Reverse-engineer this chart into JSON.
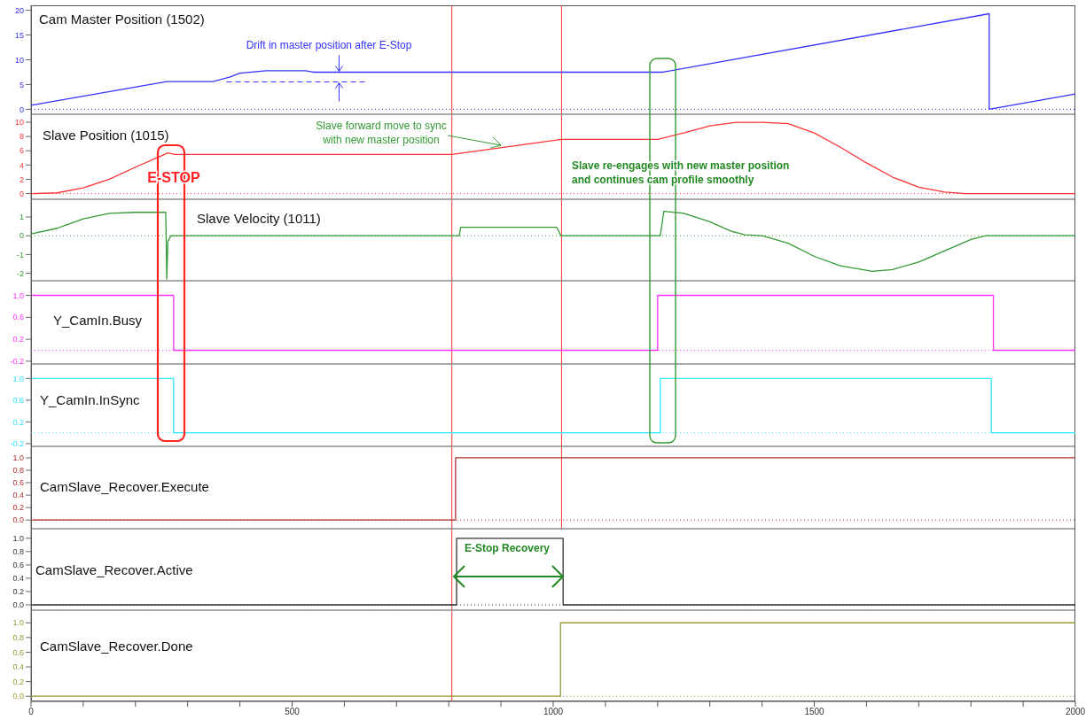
{
  "chart_data": [
    {
      "type": "line",
      "title": "Cam Master Position (1502)",
      "x": [
        0,
        260,
        348,
        380,
        400,
        450,
        526,
        540,
        1210,
        1835,
        1835,
        2000
      ],
      "series": [
        {
          "color": "#3333ff",
          "values": [
            0.8,
            5.6,
            5.6,
            6.5,
            7.3,
            7.8,
            7.8,
            7.5,
            7.5,
            19.3,
            0,
            3.1
          ]
        }
      ],
      "xlim": [
        0,
        2000
      ],
      "ylim": [
        -1,
        21
      ],
      "yticks": [
        0,
        5,
        10,
        15,
        20
      ],
      "tick_labels": "y",
      "ref_lines": [
        {
          "axis": "y",
          "value": 0,
          "color": "#3333ff",
          "line_style": "dotted"
        },
        {
          "axis": "x",
          "value": 806,
          "color": "#ff3333"
        },
        {
          "axis": "x",
          "value": 1016,
          "color": "#ff3333"
        }
      ],
      "annotations": [
        {
          "text": "Drift in master position after E-Stop",
          "x": 590,
          "y": 7.5
        }
      ]
    },
    {
      "type": "line",
      "title": "Slave Position (1015)",
      "x": [
        0,
        50,
        100,
        150,
        200,
        250,
        262,
        275,
        806,
        1016,
        1200,
        1250,
        1300,
        1350,
        1400,
        1450,
        1500,
        1550,
        1600,
        1650,
        1700,
        1750,
        1790,
        2000
      ],
      "series": [
        {
          "color": "#ff3333",
          "values": [
            0,
            0.1,
            0.8,
            2,
            3.7,
            5.3,
            5.7,
            5.5,
            5.5,
            7.6,
            7.6,
            8.5,
            9.5,
            10,
            10,
            9.8,
            8.5,
            6.5,
            4.3,
            2.3,
            0.9,
            0.2,
            0,
            0
          ]
        }
      ],
      "xlim": [
        0,
        2000
      ],
      "ylim": [
        -0.8,
        11
      ],
      "yticks": [
        0,
        2,
        4,
        6,
        8,
        10
      ],
      "tick_labels": "y",
      "ref_lines": [
        {
          "axis": "y",
          "value": 0,
          "color": "#ff3333",
          "line_style": "dotted"
        },
        {
          "axis": "x",
          "value": 806,
          "color": "#ff3333"
        },
        {
          "axis": "x",
          "value": 1016,
          "color": "#ff3333"
        }
      ],
      "annotations": [
        {
          "text": "Slave forward move to sync with new master position",
          "x": 900,
          "y": 6.4
        },
        "E-STOP",
        "Slave re-engages with new master position and continues cam profile smoothly"
      ]
    },
    {
      "type": "line",
      "title": "Slave Velocity (1011)",
      "x": [
        0,
        50,
        100,
        150,
        200,
        258,
        260,
        262,
        268,
        820,
        823,
        1007,
        1015,
        1205,
        1212,
        1250,
        1300,
        1340,
        1367,
        1400,
        1450,
        1500,
        1550,
        1611,
        1650,
        1700,
        1750,
        1800,
        1829,
        2000
      ],
      "series": [
        {
          "color": "#339933",
          "values": [
            0.1,
            0.4,
            0.9,
            1.2,
            1.25,
            1.25,
            -2.3,
            -0.3,
            0,
            0,
            0.45,
            0.45,
            0,
            0,
            1.3,
            1.2,
            0.75,
            0.25,
            0.05,
            0,
            -0.4,
            -1.1,
            -1.6,
            -1.9,
            -1.8,
            -1.4,
            -0.8,
            -0.2,
            0,
            0
          ]
        }
      ],
      "xlim": [
        0,
        2000
      ],
      "ylim": [
        -2.4,
        1.9
      ],
      "yticks": [
        -2,
        -1,
        0,
        1
      ],
      "tick_labels": "y",
      "ref_lines": [
        {
          "axis": "y",
          "value": 0,
          "color": "#339933",
          "line_style": "dotted"
        },
        {
          "axis": "x",
          "value": 806,
          "color": "#ff3333"
        },
        {
          "axis": "x",
          "value": 1016,
          "color": "#ff3333"
        }
      ]
    },
    {
      "type": "step",
      "title": "Y_CamIn.Busy",
      "x": [
        0,
        273,
        1200,
        1843,
        2000
      ],
      "series": [
        {
          "color": "#ff33ff",
          "values": [
            1,
            0,
            1,
            0,
            0
          ]
        }
      ],
      "xlim": [
        0,
        2000
      ],
      "ylim": [
        -0.25,
        1.25
      ],
      "yticks": [
        {
          "value": 1,
          "label": "1.0"
        },
        {
          "value": 0.6,
          "label": "0.6"
        },
        {
          "value": 0.2,
          "label": "0.2"
        },
        {
          "value": -0.2,
          "label": "-0.2"
        }
      ],
      "tick_labels": "y",
      "ref_lines": [
        {
          "axis": "y",
          "value": 0,
          "color": "#ff33ff",
          "line_style": "dotted"
        },
        {
          "axis": "x",
          "value": 806,
          "color": "#ff3333"
        },
        {
          "axis": "x",
          "value": 1016,
          "color": "#ff3333"
        }
      ]
    },
    {
      "type": "step",
      "title": "Y_CamIn.InSync",
      "x": [
        0,
        273,
        1205,
        1839,
        2000
      ],
      "series": [
        {
          "color": "#33e6ff",
          "values": [
            1,
            0,
            1,
            0,
            0
          ]
        }
      ],
      "xlim": [
        0,
        2000
      ],
      "ylim": [
        -0.25,
        1.25
      ],
      "yticks": [
        {
          "value": 1,
          "label": "1.0"
        },
        {
          "value": 0.6,
          "label": "0.6"
        },
        {
          "value": 0.2,
          "label": "0.2"
        },
        {
          "value": -0.2,
          "label": "-0.2"
        }
      ],
      "tick_labels": "y",
      "ref_lines": [
        {
          "axis": "y",
          "value": 0,
          "color": "#33e6ff",
          "line_style": "dotted"
        },
        {
          "axis": "x",
          "value": 806,
          "color": "#ff3333"
        },
        {
          "axis": "x",
          "value": 1016,
          "color": "#ff3333"
        }
      ]
    },
    {
      "type": "step",
      "title": "CamSlave_Recover.Execute",
      "x": [
        0,
        813,
        2000
      ],
      "series": [
        {
          "color": "#b03030",
          "values": [
            0,
            1,
            1
          ]
        }
      ],
      "xlim": [
        0,
        2000
      ],
      "ylim": [
        -0.14,
        1.17
      ],
      "yticks": [
        {
          "value": 0,
          "label": "0.0"
        },
        {
          "value": 0.2,
          "label": "0.2"
        },
        {
          "value": 0.4,
          "label": "0.4"
        },
        {
          "value": 0.6,
          "label": "0.6"
        },
        {
          "value": 0.8,
          "label": "0.8"
        },
        {
          "value": 1,
          "label": "1.0"
        }
      ],
      "tick_labels": "y",
      "ref_lines": [
        {
          "axis": "y",
          "value": 0,
          "color": "#b03030",
          "line_style": "dotted"
        },
        {
          "axis": "x",
          "value": 806,
          "color": "#ff3333"
        },
        {
          "axis": "x",
          "value": 1016,
          "color": "#ff3333"
        }
      ]
    },
    {
      "type": "step",
      "title": "CamSlave_Recover.Active",
      "x": [
        0,
        815,
        1019,
        2000
      ],
      "series": [
        {
          "color": "#333333",
          "values": [
            0,
            1,
            0,
            0
          ]
        }
      ],
      "xlim": [
        0,
        2000
      ],
      "ylim": [
        -0.08,
        1.13
      ],
      "yticks": [
        {
          "value": 0,
          "label": "0.0"
        },
        {
          "value": 0.2,
          "label": "0.2"
        },
        {
          "value": 0.4,
          "label": "0.4"
        },
        {
          "value": 0.6,
          "label": "0.6"
        },
        {
          "value": 0.8,
          "label": "0.8"
        },
        {
          "value": 1,
          "label": "1.0"
        }
      ],
      "tick_labels": "y",
      "ref_lines": [
        {
          "axis": "y",
          "value": 0,
          "color": "#333333",
          "line_style": "dotted"
        },
        {
          "axis": "x",
          "value": 806,
          "color": "#ff3333"
        }
      ],
      "annotations": [
        "E-Stop Recovery"
      ]
    },
    {
      "type": "step",
      "title": "CamSlave_Recover.Done",
      "x": [
        0,
        1014,
        2000
      ],
      "series": [
        {
          "color": "#999933",
          "values": [
            0,
            1,
            1
          ]
        }
      ],
      "xlim": [
        0,
        2000
      ],
      "ylim": [
        -0.07,
        1.16
      ],
      "yticks": [
        {
          "value": 0,
          "label": "0.0"
        },
        {
          "value": 0.2,
          "label": "0.2"
        },
        {
          "value": 0.4,
          "label": "0.4"
        },
        {
          "value": 0.6,
          "label": "0.6"
        },
        {
          "value": 0.8,
          "label": "0.8"
        },
        {
          "value": 1,
          "label": "1.0"
        }
      ],
      "xticks": [
        0,
        {
          "value": 100,
          "label": null
        },
        {
          "value": 200,
          "label": null
        },
        {
          "value": 300,
          "label": null
        },
        {
          "value": 400,
          "label": null
        },
        500,
        {
          "value": 600,
          "label": null
        },
        {
          "value": 700,
          "label": null
        },
        {
          "value": 800,
          "label": null
        },
        {
          "value": 900,
          "label": null
        },
        1000,
        {
          "value": 1100,
          "label": null
        },
        {
          "value": 1200,
          "label": null
        },
        {
          "value": 1300,
          "label": null
        },
        {
          "value": 1400,
          "label": null
        },
        1500,
        {
          "value": 1600,
          "label": null
        },
        {
          "value": 1700,
          "label": null
        },
        {
          "value": 1800,
          "label": null
        },
        {
          "value": 1900,
          "label": null
        },
        2000
      ],
      "ref_lines": [
        {
          "axis": "y",
          "value": 0,
          "color": "#999933",
          "line_style": "dotted"
        },
        {
          "axis": "x",
          "value": 806,
          "color": "#ff3333"
        }
      ]
    }
  ]
}
